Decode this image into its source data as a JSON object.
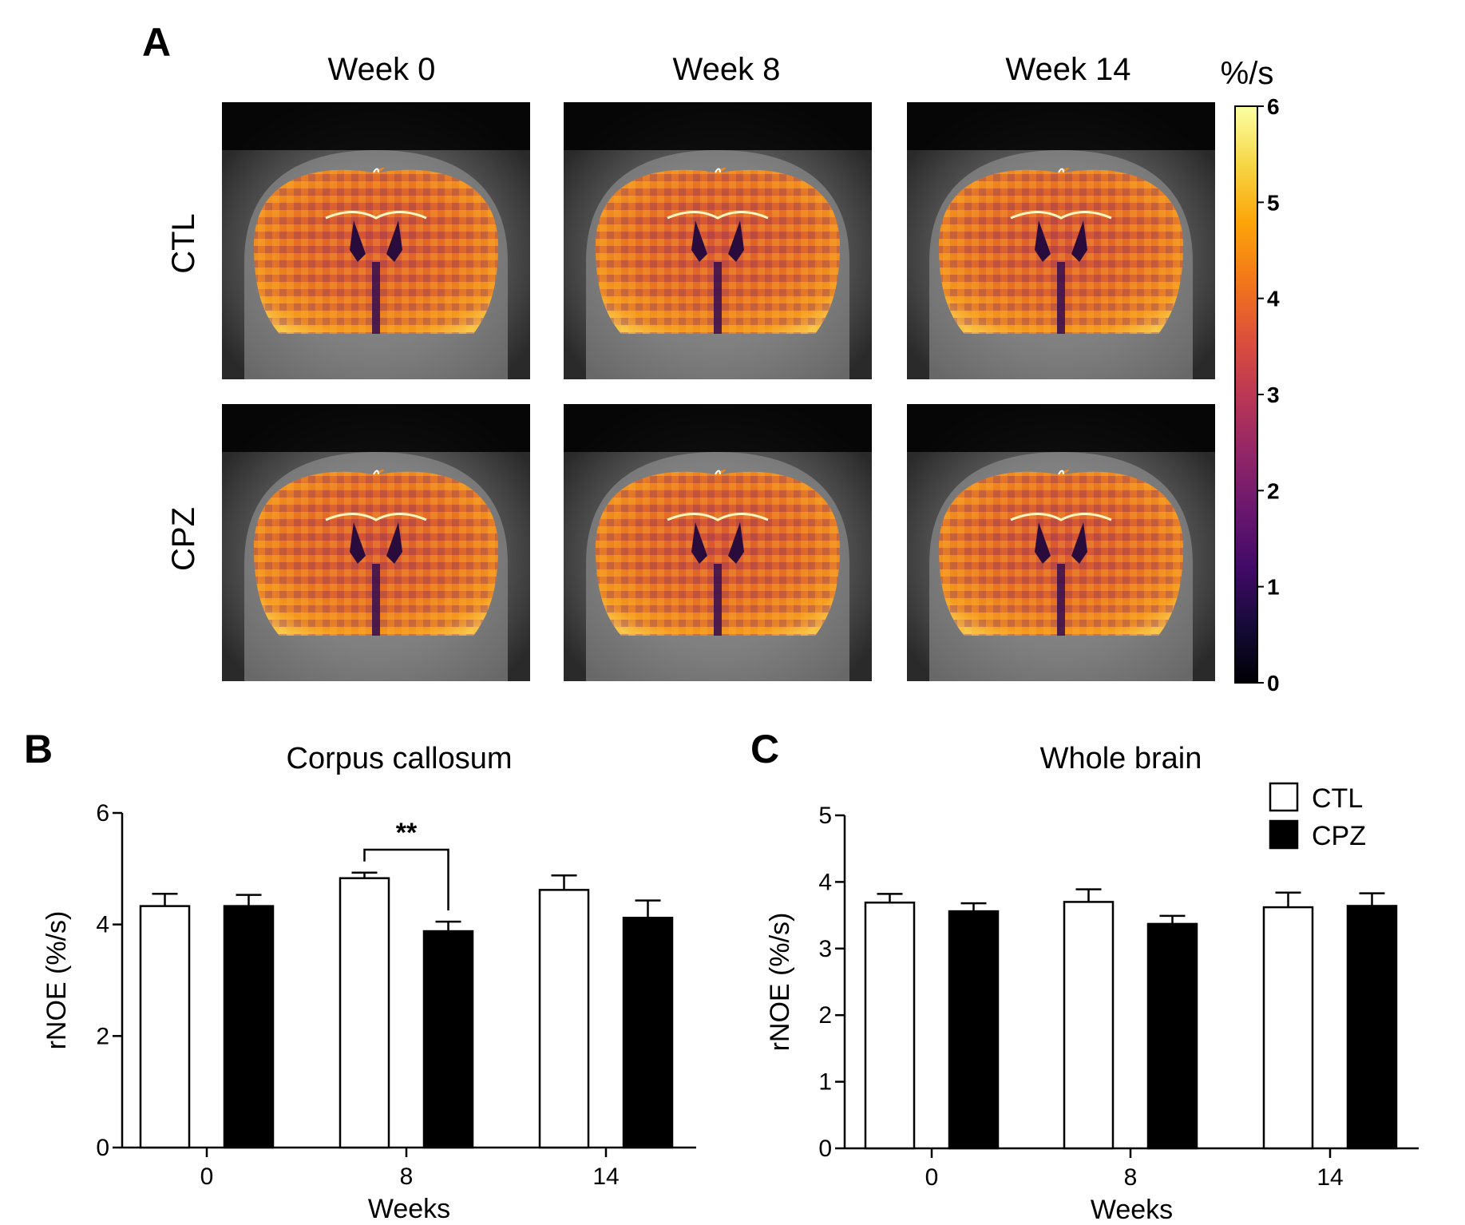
{
  "panel_labels": {
    "a": "A",
    "b": "B",
    "c": "C"
  },
  "panel_a": {
    "column_titles": [
      "Week 0",
      "Week 8",
      "Week 14"
    ],
    "row_labels": [
      "CTL",
      "CPZ"
    ],
    "colorbar": {
      "unit": "%/s",
      "min": 0,
      "max": 6,
      "ticks": [
        "0",
        "1",
        "2",
        "3",
        "4",
        "5",
        "6"
      ],
      "colormap": "inferno"
    }
  },
  "colors": {
    "ctl_fill": "#ffffff",
    "cpz_fill": "#000000",
    "axis": "#000000"
  },
  "chart_data": [
    {
      "type": "bar",
      "title": "Corpus callosum",
      "xlabel": "Weeks",
      "ylabel": "rNOE (%/s)",
      "categories": [
        "0",
        "8",
        "14"
      ],
      "ylim": [
        0,
        6
      ],
      "yticks": [
        0,
        2,
        4,
        6
      ],
      "ytick_labels": [
        "0",
        "2",
        "4",
        "6"
      ],
      "series": [
        {
          "name": "CTL",
          "values": [
            4.33,
            4.83,
            4.62
          ],
          "errors": [
            0.22,
            0.1,
            0.26
          ],
          "fill": "#ffffff"
        },
        {
          "name": "CPZ",
          "values": [
            4.33,
            3.88,
            4.12
          ],
          "errors": [
            0.2,
            0.17,
            0.31
          ],
          "fill": "#000000"
        }
      ],
      "annotations": [
        {
          "text": "**",
          "category": "8",
          "between": [
            "CTL",
            "CPZ"
          ]
        }
      ]
    },
    {
      "type": "bar",
      "title": "Whole brain",
      "xlabel": "Weeks",
      "ylabel": "rNOE (%/s)",
      "categories": [
        "0",
        "8",
        "14"
      ],
      "ylim": [
        0,
        5
      ],
      "yticks": [
        0,
        1,
        2,
        3,
        4,
        5
      ],
      "ytick_labels": [
        "0",
        "1",
        "2",
        "3",
        "4",
        "5"
      ],
      "series": [
        {
          "name": "CTL",
          "values": [
            3.69,
            3.7,
            3.62
          ],
          "errors": [
            0.13,
            0.19,
            0.22
          ],
          "fill": "#ffffff"
        },
        {
          "name": "CPZ",
          "values": [
            3.56,
            3.37,
            3.64
          ],
          "errors": [
            0.12,
            0.12,
            0.19
          ],
          "fill": "#000000"
        }
      ],
      "legend": {
        "position": "top-right",
        "entries": [
          "CTL",
          "CPZ"
        ]
      }
    }
  ]
}
